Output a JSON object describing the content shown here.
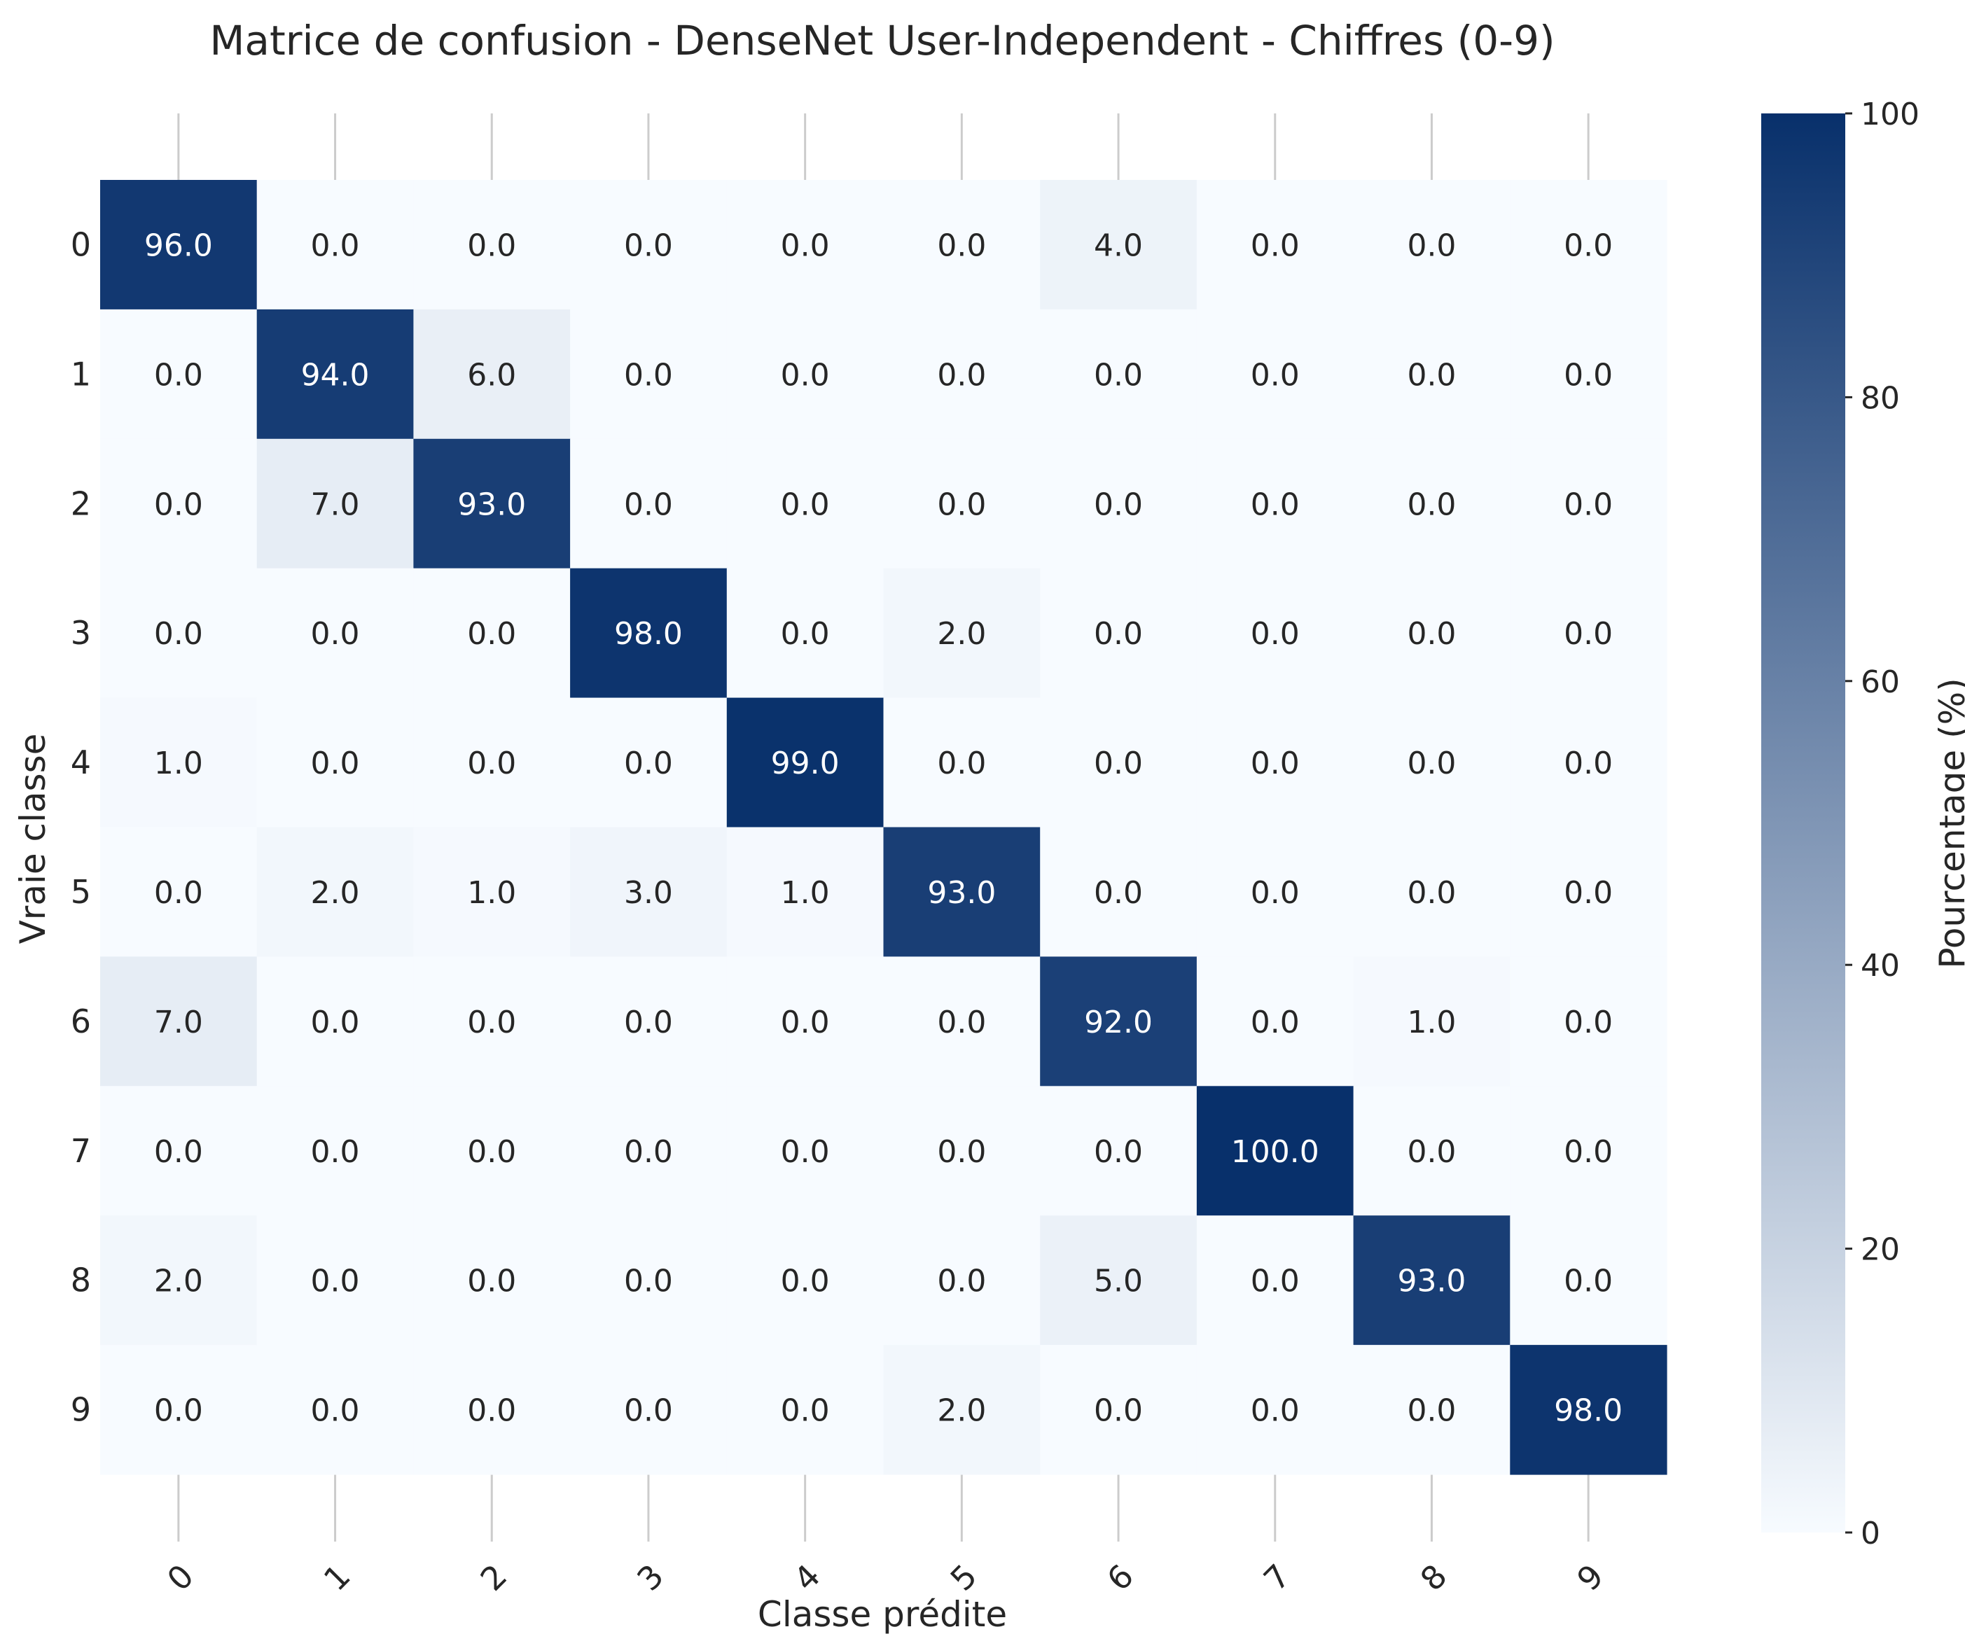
{
  "chart_data": {
    "type": "heatmap",
    "title": "Matrice de confusion - DenseNet User-Independent - Chiffres (0-9)",
    "xlabel": "Classe prédite",
    "ylabel": "Vraie classe",
    "x_categories": [
      "0",
      "1",
      "2",
      "3",
      "4",
      "5",
      "6",
      "7",
      "8",
      "9"
    ],
    "y_categories": [
      "0",
      "1",
      "2",
      "3",
      "4",
      "5",
      "6",
      "7",
      "8",
      "9"
    ],
    "values": [
      [
        96.0,
        0.0,
        0.0,
        0.0,
        0.0,
        0.0,
        4.0,
        0.0,
        0.0,
        0.0
      ],
      [
        0.0,
        94.0,
        6.0,
        0.0,
        0.0,
        0.0,
        0.0,
        0.0,
        0.0,
        0.0
      ],
      [
        0.0,
        7.0,
        93.0,
        0.0,
        0.0,
        0.0,
        0.0,
        0.0,
        0.0,
        0.0
      ],
      [
        0.0,
        0.0,
        0.0,
        98.0,
        0.0,
        2.0,
        0.0,
        0.0,
        0.0,
        0.0
      ],
      [
        1.0,
        0.0,
        0.0,
        0.0,
        99.0,
        0.0,
        0.0,
        0.0,
        0.0,
        0.0
      ],
      [
        0.0,
        2.0,
        1.0,
        3.0,
        1.0,
        93.0,
        0.0,
        0.0,
        0.0,
        0.0
      ],
      [
        7.0,
        0.0,
        0.0,
        0.0,
        0.0,
        0.0,
        92.0,
        0.0,
        1.0,
        0.0
      ],
      [
        0.0,
        0.0,
        0.0,
        0.0,
        0.0,
        0.0,
        0.0,
        100.0,
        0.0,
        0.0
      ],
      [
        2.0,
        0.0,
        0.0,
        0.0,
        0.0,
        0.0,
        5.0,
        0.0,
        93.0,
        0.0
      ],
      [
        0.0,
        0.0,
        0.0,
        0.0,
        0.0,
        2.0,
        0.0,
        0.0,
        0.0,
        98.0
      ]
    ],
    "value_format_decimals": 1,
    "colorbar": {
      "label": "Pourcentage (%)",
      "range": [
        0,
        100
      ],
      "ticks": [
        "0",
        "20",
        "40",
        "60",
        "80",
        "100"
      ],
      "color_low": "#f7fbff",
      "color_high": "#08306b"
    },
    "grid": true,
    "text_color_light": "#ffffff",
    "text_color_dark": "#262626"
  }
}
